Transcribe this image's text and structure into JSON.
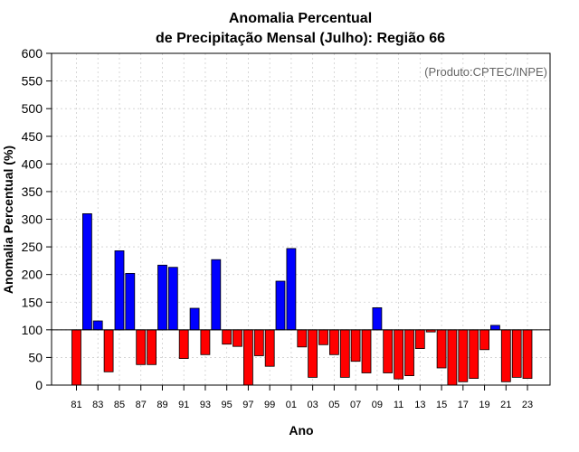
{
  "chart_data": {
    "type": "bar",
    "title_line1": "Anomalia Percentual",
    "title_line2": "de Precipitação Mensal (Julho): Região 66",
    "credit": "(Produto:CPTEC/INPE)",
    "xlabel": "Ano",
    "ylabel": "Anomalia Percentual (%)",
    "ylim": [
      0,
      600
    ],
    "yticks": [
      0,
      50,
      100,
      150,
      200,
      250,
      300,
      350,
      400,
      450,
      500,
      550,
      600
    ],
    "baseline": 100,
    "grid": true,
    "positive_color": "#0000ff",
    "negative_color": "#ff0000",
    "x_tick_labels": [
      "81",
      "83",
      "85",
      "87",
      "89",
      "91",
      "93",
      "95",
      "97",
      "99",
      "01",
      "03",
      "05",
      "07",
      "09",
      "11",
      "13",
      "15",
      "17",
      "19",
      "21",
      "23"
    ],
    "categories": [
      "1981",
      "1982",
      "1983",
      "1984",
      "1985",
      "1986",
      "1987",
      "1988",
      "1989",
      "1990",
      "1991",
      "1992",
      "1993",
      "1994",
      "1995",
      "1996",
      "1997",
      "1998",
      "1999",
      "2000",
      "2001",
      "2002",
      "2003",
      "2004",
      "2005",
      "2006",
      "2007",
      "2008",
      "2009",
      "2010",
      "2011",
      "2012",
      "2013",
      "2014",
      "2015",
      "2016",
      "2017",
      "2018",
      "2019",
      "2020",
      "2021",
      "2022",
      "2023"
    ],
    "values": [
      0,
      310,
      116,
      24,
      243,
      202,
      37,
      37,
      217,
      213,
      48,
      139,
      55,
      227,
      74,
      70,
      0,
      53,
      34,
      188,
      247,
      69,
      14,
      73,
      55,
      14,
      43,
      22,
      140,
      22,
      11,
      17,
      66,
      96,
      31,
      0,
      6,
      12,
      64,
      108,
      6,
      14,
      12
    ]
  }
}
